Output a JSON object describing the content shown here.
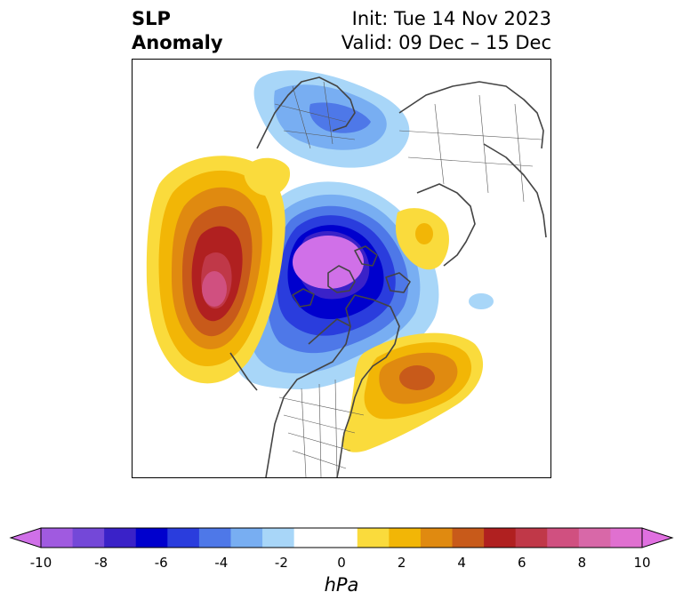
{
  "title": {
    "left_line1": "SLP",
    "left_line2": "Anomaly",
    "right_line1": "Init: Tue 14 Nov 2023",
    "right_line2": "Valid: 09 Dec – 15 Dec"
  },
  "colorbar": {
    "unit": "hPa",
    "ticks": [
      "-10",
      "-8",
      "-6",
      "-4",
      "-2",
      "0",
      "2",
      "4",
      "6",
      "8",
      "10"
    ],
    "tick_values": [
      -10,
      -8,
      -6,
      -4,
      -2,
      0,
      2,
      4,
      6,
      8,
      10
    ],
    "levels": [
      -10,
      -9,
      -8,
      -7,
      -6,
      -5,
      -4,
      -3,
      -2,
      -1,
      1,
      2,
      3,
      4,
      5,
      6,
      7,
      8,
      9,
      10
    ],
    "colors": [
      "#a05ae0",
      "#7448d8",
      "#3a22c8",
      "#0000cd",
      "#2a3ddd",
      "#4e78e8",
      "#78aef2",
      "#a8d6f8",
      "#ffffff",
      "#ffffff",
      "#fadb3c",
      "#f2b606",
      "#e08a10",
      "#c85a1a",
      "#b02020",
      "#c03848",
      "#d05080",
      "#d868a8",
      "#e070d0"
    ],
    "under_color": "#d070e8",
    "over_color": "#e070e0"
  }
}
